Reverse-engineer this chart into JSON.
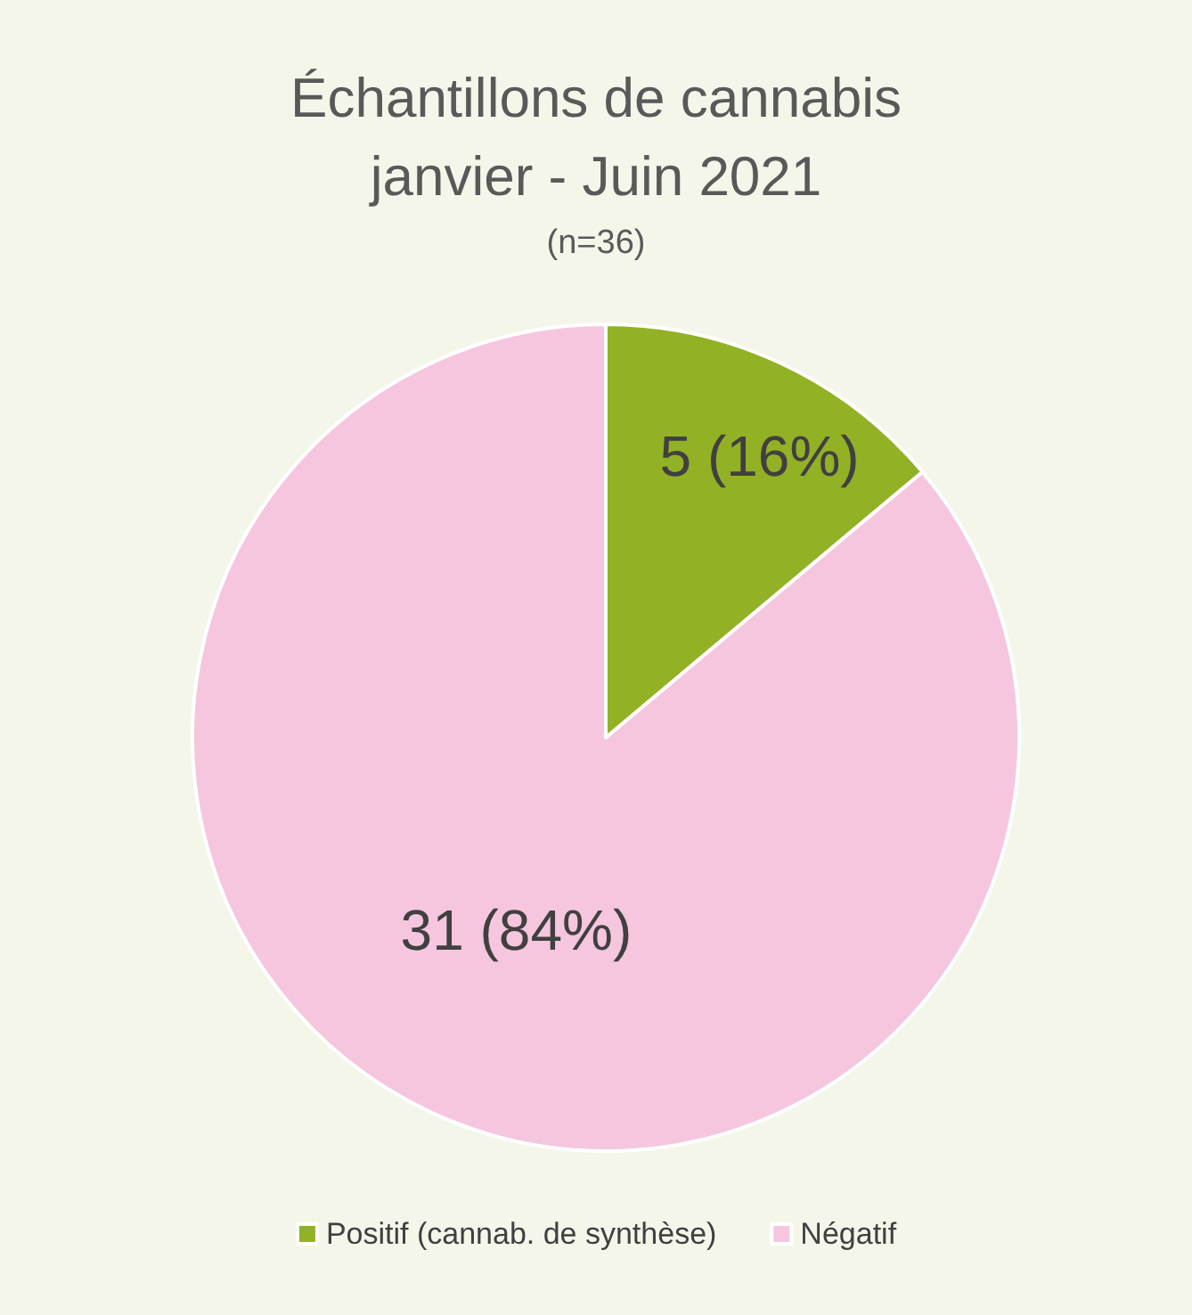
{
  "chart_data": {
    "type": "pie",
    "title": "Échantillons de cannabis\njanvier - Juin 2021",
    "subtitle": "(n=36)",
    "categories": [
      "Positif (cannab. de synthèse)",
      "Négatif"
    ],
    "values": [
      5,
      31
    ],
    "colors": [
      "#93b125",
      "#f5c6de"
    ],
    "value_labels": [
      "5 (16%)",
      "31 (84%)"
    ],
    "legend": "bottom"
  }
}
